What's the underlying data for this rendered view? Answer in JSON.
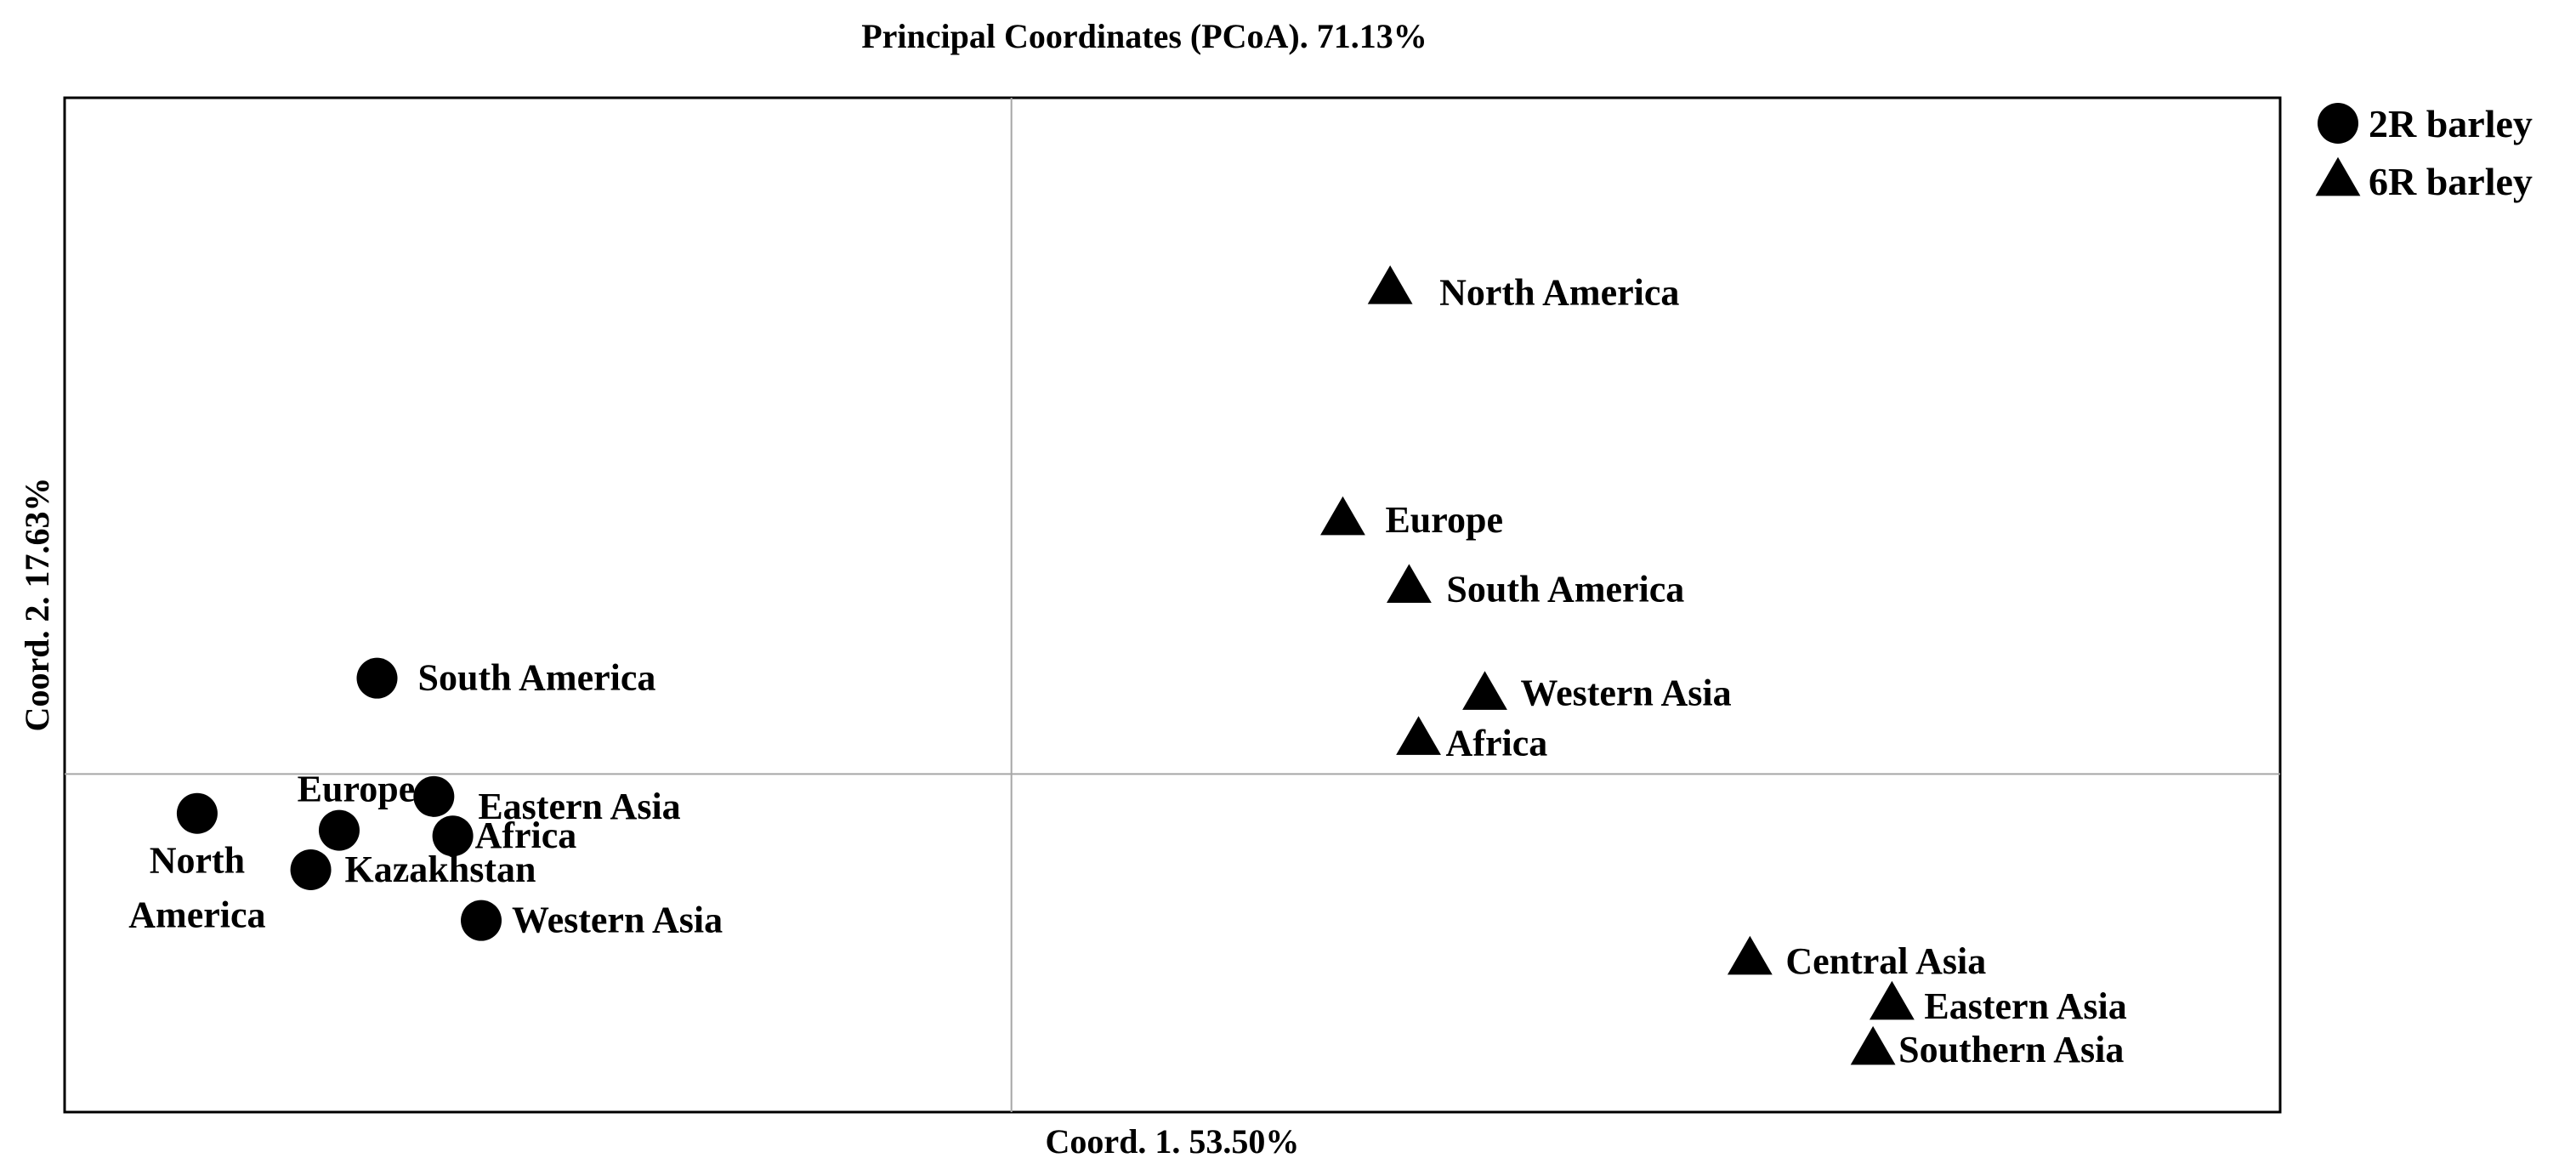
{
  "chart_data": {
    "type": "scatter",
    "title": "Principal Coordinates (PCoA). 71.13%",
    "xlabel": "Coord. 1. 53.50%",
    "ylabel": "Coord. 2. 17.63%",
    "xlim": [
      -1.0,
      1.34
    ],
    "ylim": [
      -0.6,
      1.2
    ],
    "grid": false,
    "zero_lines": true,
    "legend_position": "top-right outside",
    "series": [
      {
        "name": "2R barley",
        "marker": "circle",
        "color": "#000000",
        "points": [
          {
            "label": "South America",
            "x": -0.67,
            "y": 0.17
          },
          {
            "label": "Eastern Asia",
            "x": -0.61,
            "y": -0.04
          },
          {
            "label": "North America",
            "x": -0.86,
            "y": -0.07
          },
          {
            "label": "Europe",
            "x": -0.71,
            "y": -0.1
          },
          {
            "label": "Africa",
            "x": -0.59,
            "y": -0.11
          },
          {
            "label": "Kazakhstan",
            "x": -0.74,
            "y": -0.17
          },
          {
            "label": "Western Asia",
            "x": -0.56,
            "y": -0.26
          }
        ]
      },
      {
        "name": "6R barley",
        "marker": "triangle",
        "color": "#000000",
        "points": [
          {
            "label": "North America",
            "x": 0.4,
            "y": 0.86
          },
          {
            "label": "Europe",
            "x": 0.35,
            "y": 0.45
          },
          {
            "label": "South America",
            "x": 0.42,
            "y": 0.33
          },
          {
            "label": "Western Asia",
            "x": 0.5,
            "y": 0.14
          },
          {
            "label": "Africa",
            "x": 0.43,
            "y": 0.06
          },
          {
            "label": "Central Asia",
            "x": 0.78,
            "y": -0.33
          },
          {
            "label": "Eastern Asia",
            "x": 0.93,
            "y": -0.41
          },
          {
            "label": "Southern Asia",
            "x": 0.91,
            "y": -0.49
          }
        ]
      }
    ]
  }
}
